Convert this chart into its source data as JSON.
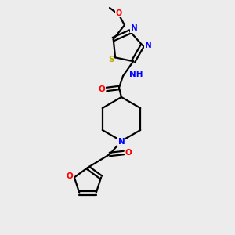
{
  "bg_color": "#ececec",
  "bond_color": "#000000",
  "atom_colors": {
    "O": "#ff0000",
    "N": "#0000ff",
    "S": "#bbaa00",
    "H": "#008080",
    "C": "#000000"
  },
  "figsize": [
    3.0,
    3.0
  ],
  "dpi": 100
}
